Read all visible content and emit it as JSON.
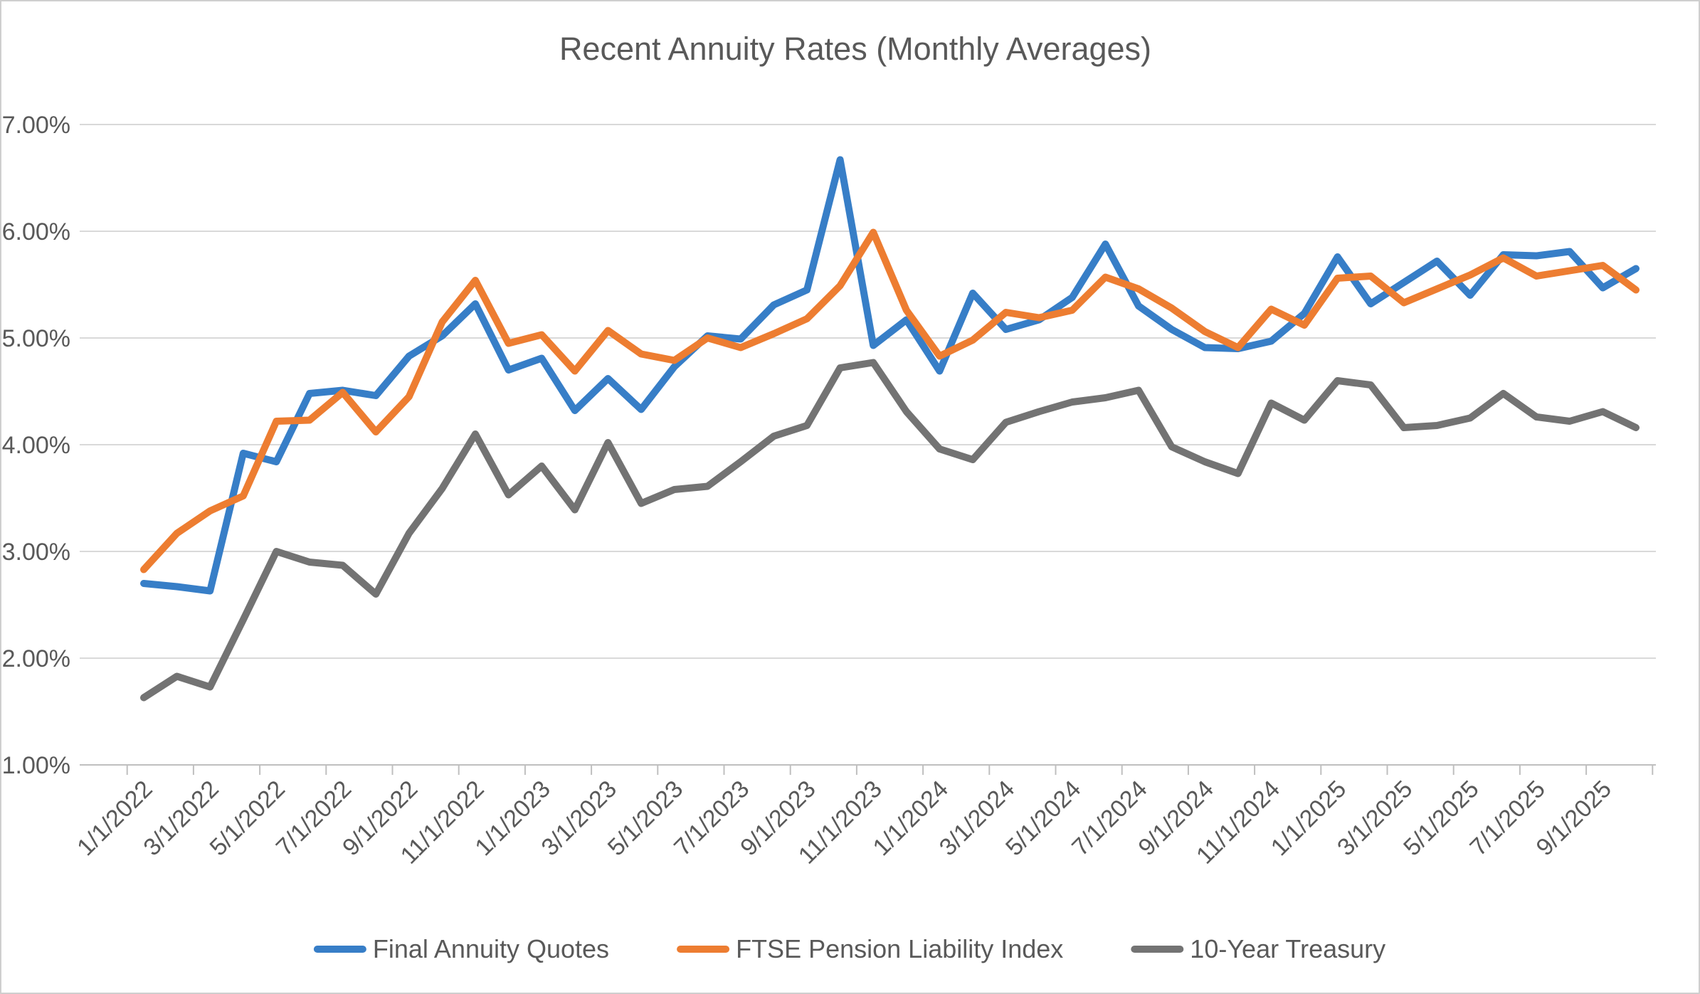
{
  "title": "Recent Annuity Rates (Monthly Averages)",
  "chart_data": {
    "type": "line",
    "x": [
      "1/1/2022",
      "2/1/2022",
      "3/1/2022",
      "4/1/2022",
      "5/1/2022",
      "6/1/2022",
      "7/1/2022",
      "8/1/2022",
      "9/1/2022",
      "10/1/2022",
      "11/1/2022",
      "12/1/2022",
      "1/1/2023",
      "2/1/2023",
      "3/1/2023",
      "4/1/2023",
      "5/1/2023",
      "6/1/2023",
      "7/1/2023",
      "8/1/2023",
      "9/1/2023",
      "10/1/2023",
      "11/1/2023",
      "12/1/2023",
      "1/1/2024",
      "2/1/2024",
      "3/1/2024",
      "4/1/2024",
      "5/1/2024",
      "6/1/2024",
      "7/1/2024",
      "8/1/2024",
      "9/1/2024",
      "10/1/2024",
      "11/1/2024",
      "12/1/2024",
      "1/1/2025",
      "2/1/2025",
      "3/1/2025",
      "4/1/2025",
      "5/1/2025",
      "6/1/2025",
      "7/1/2025",
      "8/1/2025",
      "9/1/2025",
      "10/1/2025"
    ],
    "x_tick_labels": [
      "1/1/2022",
      "3/1/2022",
      "5/1/2022",
      "7/1/2022",
      "9/1/2022",
      "11/1/2022",
      "1/1/2023",
      "3/1/2023",
      "5/1/2023",
      "7/1/2023",
      "9/1/2023",
      "11/1/2023",
      "1/1/2024",
      "3/1/2024",
      "5/1/2024",
      "7/1/2024",
      "9/1/2024",
      "11/1/2024",
      "1/1/2025",
      "3/1/2025",
      "5/1/2025",
      "7/1/2025",
      "9/1/2025"
    ],
    "x_tick_step": 2,
    "series": [
      {
        "name": "Final Annuity Quotes",
        "color": "#377EC7",
        "values": [
          2.7,
          2.67,
          2.63,
          3.92,
          3.84,
          4.48,
          4.51,
          4.46,
          4.83,
          5.02,
          5.32,
          4.7,
          4.81,
          4.32,
          4.62,
          4.33,
          4.73,
          5.02,
          4.99,
          5.31,
          5.45,
          6.67,
          4.93,
          5.17,
          4.69,
          5.42,
          5.08,
          5.17,
          5.38,
          5.88,
          5.3,
          5.08,
          4.91,
          4.9,
          4.97,
          5.23,
          5.76,
          5.32,
          5.52,
          5.72,
          5.4,
          5.78,
          5.77,
          5.81,
          5.47,
          5.65
        ]
      },
      {
        "name": "FTSE Pension Liability Index",
        "color": "#ED7D31",
        "values": [
          2.83,
          3.17,
          3.38,
          3.52,
          4.22,
          4.23,
          4.49,
          4.12,
          4.45,
          5.15,
          5.54,
          4.95,
          5.03,
          4.69,
          5.07,
          4.85,
          4.79,
          5.0,
          4.91,
          5.04,
          5.18,
          5.49,
          5.99,
          5.26,
          4.83,
          4.98,
          5.24,
          5.19,
          5.26,
          5.57,
          5.46,
          5.28,
          5.06,
          4.91,
          5.27,
          5.12,
          5.56,
          5.58,
          5.33,
          5.46,
          5.59,
          5.75,
          5.58,
          5.63,
          5.68,
          5.45
        ]
      },
      {
        "name": "10-Year Treasury",
        "color": "#737373",
        "values": [
          1.63,
          1.83,
          1.73,
          2.36,
          3.0,
          2.9,
          2.87,
          2.6,
          3.17,
          3.59,
          4.1,
          3.53,
          3.8,
          3.39,
          4.02,
          3.45,
          3.58,
          3.61,
          3.84,
          4.08,
          4.18,
          4.72,
          4.77,
          4.31,
          3.96,
          3.86,
          4.21,
          4.31,
          4.4,
          4.44,
          4.51,
          3.98,
          3.84,
          3.73,
          4.39,
          4.23,
          4.6,
          4.56,
          4.16,
          4.18,
          4.25,
          4.48,
          4.26,
          4.22,
          4.31,
          4.16
        ]
      }
    ],
    "ylim": [
      1,
      7
    ],
    "y_tick_labels": [
      "1.00%",
      "2.00%",
      "3.00%",
      "4.00%",
      "5.00%",
      "6.00%",
      "7.00%"
    ],
    "xlabel": "",
    "ylabel": "",
    "grid": true,
    "legend_position": "bottom"
  },
  "style": {
    "title_color": "#595959",
    "axis_label_color": "#595959",
    "gridline_color": "#D9D9D9",
    "axis_line_color": "#BFBFBF",
    "background": "#FFFFFF"
  }
}
